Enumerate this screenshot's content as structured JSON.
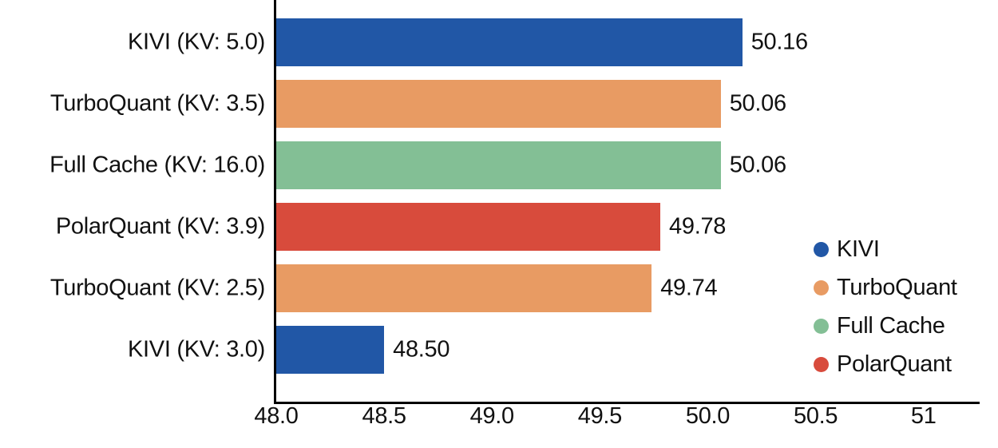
{
  "chart_data": {
    "type": "bar",
    "orientation": "horizontal",
    "title": "",
    "xlabel": "",
    "ylabel": "",
    "grid": false,
    "xlim": [
      48.0,
      51.26
    ],
    "x_ticks": [
      {
        "value": 48.0,
        "label": "48.0"
      },
      {
        "value": 48.5,
        "label": "48.5"
      },
      {
        "value": 49.0,
        "label": "49.0"
      },
      {
        "value": 49.5,
        "label": "49.5"
      },
      {
        "value": 50.0,
        "label": "50.0"
      },
      {
        "value": 50.5,
        "label": "50.5"
      },
      {
        "value": 51.0,
        "label": "51"
      }
    ],
    "bars": [
      {
        "category": "KIVI (KV: 5.0)",
        "series": "KIVI",
        "value": 50.16,
        "value_label": "50.16",
        "color": "#2157A6"
      },
      {
        "category": "TurboQuant (KV: 3.5)",
        "series": "TurboQuant",
        "value": 50.06,
        "value_label": "50.06",
        "color": "#E89B63"
      },
      {
        "category": "Full Cache (KV: 16.0)",
        "series": "Full Cache",
        "value": 50.06,
        "value_label": "50.06",
        "color": "#83BF95"
      },
      {
        "category": "PolarQuant (KV: 3.9)",
        "series": "PolarQuant",
        "value": 49.78,
        "value_label": "49.78",
        "color": "#D84B3C"
      },
      {
        "category": "TurboQuant (KV: 2.5)",
        "series": "TurboQuant",
        "value": 49.74,
        "value_label": "49.74",
        "color": "#E89B63"
      },
      {
        "category": "KIVI (KV: 3.0)",
        "series": "KIVI",
        "value": 48.5,
        "value_label": "48.50",
        "color": "#2157A6"
      }
    ],
    "legend": {
      "position": "lower right",
      "items": [
        {
          "label": "KIVI",
          "color": "#2157A6"
        },
        {
          "label": "TurboQuant",
          "color": "#E89B63"
        },
        {
          "label": "Full Cache",
          "color": "#83BF95"
        },
        {
          "label": "PolarQuant",
          "color": "#D84B3C"
        }
      ]
    },
    "axis_color": "#000000",
    "text_color": "#111111"
  }
}
